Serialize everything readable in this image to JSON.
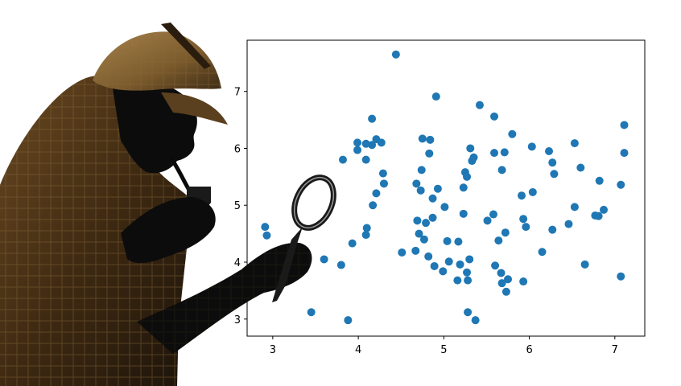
{
  "chart_data": {
    "type": "scatter",
    "title": "",
    "xlabel": "",
    "ylabel": "",
    "xlim": [
      2.7,
      7.35
    ],
    "ylim": [
      2.7,
      7.9
    ],
    "xticks": [
      3,
      4,
      5,
      6,
      7
    ],
    "yticks": [
      3,
      4,
      5,
      6,
      7
    ],
    "grid": false,
    "legend": "none",
    "marker_color": "#1f77b4",
    "points": [
      [
        2.91,
        4.62
      ],
      [
        2.93,
        4.47
      ],
      [
        3.45,
        3.12
      ],
      [
        3.6,
        4.05
      ],
      [
        3.8,
        3.95
      ],
      [
        3.82,
        5.8
      ],
      [
        3.88,
        2.98
      ],
      [
        3.93,
        4.33
      ],
      [
        3.99,
        5.97
      ],
      [
        3.99,
        6.1
      ],
      [
        4.09,
        6.08
      ],
      [
        4.09,
        5.8
      ],
      [
        4.1,
        4.6
      ],
      [
        4.09,
        4.48
      ],
      [
        4.16,
        6.52
      ],
      [
        4.16,
        6.06
      ],
      [
        4.17,
        5.0
      ],
      [
        4.21,
        6.16
      ],
      [
        4.21,
        5.21
      ],
      [
        4.27,
        6.1
      ],
      [
        4.29,
        5.56
      ],
      [
        4.3,
        5.38
      ],
      [
        4.44,
        7.65
      ],
      [
        4.51,
        4.17
      ],
      [
        4.67,
        4.2
      ],
      [
        4.68,
        5.38
      ],
      [
        4.69,
        4.73
      ],
      [
        4.71,
        4.5
      ],
      [
        4.73,
        5.26
      ],
      [
        4.74,
        5.62
      ],
      [
        4.75,
        6.17
      ],
      [
        4.77,
        4.4
      ],
      [
        4.79,
        4.69
      ],
      [
        4.82,
        4.1
      ],
      [
        4.83,
        5.91
      ],
      [
        4.84,
        6.15
      ],
      [
        4.87,
        4.78
      ],
      [
        4.87,
        5.12
      ],
      [
        4.89,
        3.93
      ],
      [
        4.91,
        6.91
      ],
      [
        4.93,
        5.29
      ],
      [
        4.99,
        3.84
      ],
      [
        5.01,
        4.97
      ],
      [
        5.04,
        4.37
      ],
      [
        5.06,
        4.01
      ],
      [
        5.16,
        3.68
      ],
      [
        5.17,
        4.36
      ],
      [
        5.19,
        3.96
      ],
      [
        5.23,
        5.31
      ],
      [
        5.23,
        4.85
      ],
      [
        5.25,
        5.58
      ],
      [
        5.27,
        5.5
      ],
      [
        5.27,
        3.82
      ],
      [
        5.28,
        3.68
      ],
      [
        5.28,
        3.12
      ],
      [
        5.3,
        4.05
      ],
      [
        5.31,
        6.0
      ],
      [
        5.33,
        5.78
      ],
      [
        5.35,
        5.84
      ],
      [
        5.37,
        2.98
      ],
      [
        5.42,
        6.76
      ],
      [
        5.51,
        4.73
      ],
      [
        5.58,
        4.84
      ],
      [
        5.59,
        5.92
      ],
      [
        5.59,
        6.56
      ],
      [
        5.6,
        3.94
      ],
      [
        5.64,
        4.38
      ],
      [
        5.67,
        3.81
      ],
      [
        5.68,
        3.63
      ],
      [
        5.68,
        5.62
      ],
      [
        5.71,
        5.93
      ],
      [
        5.72,
        4.52
      ],
      [
        5.73,
        3.48
      ],
      [
        5.75,
        3.7
      ],
      [
        5.8,
        6.25
      ],
      [
        5.91,
        5.17
      ],
      [
        5.93,
        4.76
      ],
      [
        5.93,
        3.66
      ],
      [
        5.96,
        4.62
      ],
      [
        6.03,
        6.03
      ],
      [
        6.04,
        5.23
      ],
      [
        6.15,
        4.18
      ],
      [
        6.23,
        5.95
      ],
      [
        6.27,
        4.57
      ],
      [
        6.27,
        5.75
      ],
      [
        6.29,
        5.55
      ],
      [
        6.46,
        4.67
      ],
      [
        6.53,
        4.97
      ],
      [
        6.53,
        6.09
      ],
      [
        6.6,
        5.66
      ],
      [
        6.65,
        3.96
      ],
      [
        6.77,
        4.82
      ],
      [
        6.81,
        4.81
      ],
      [
        6.82,
        5.43
      ],
      [
        6.87,
        4.92
      ],
      [
        7.07,
        5.36
      ],
      [
        7.07,
        3.75
      ],
      [
        7.11,
        6.41
      ],
      [
        7.11,
        5.92
      ]
    ]
  }
}
